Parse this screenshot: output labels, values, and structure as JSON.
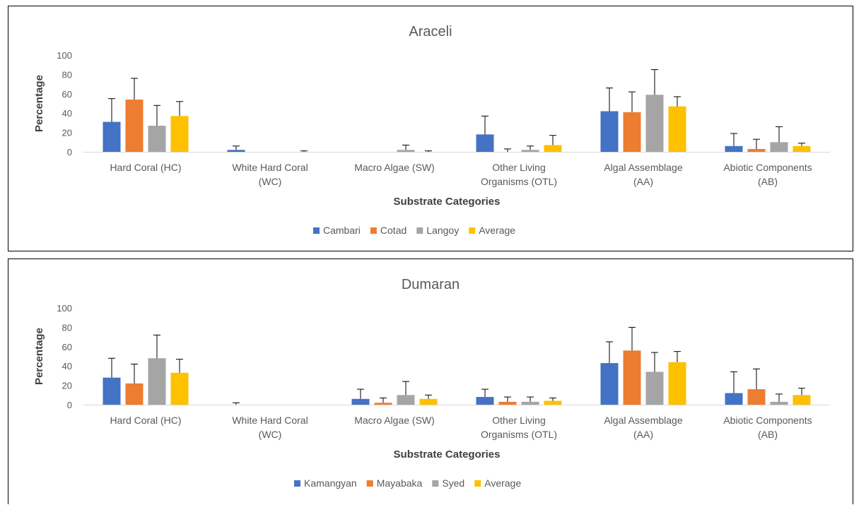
{
  "chart_data": [
    {
      "type": "bar",
      "title": "Araceli",
      "xlabel": "Substrate Categories",
      "ylabel": "Percentage",
      "ylim": [
        0,
        100
      ],
      "yticks": [
        0,
        20,
        40,
        60,
        80,
        100
      ],
      "categories": [
        [
          "Hard Coral (HC)"
        ],
        [
          "White Hard Coral",
          "(WC)"
        ],
        [
          "Macro Algae (SW)"
        ],
        [
          "Other Living",
          "Organisms (OTL)"
        ],
        [
          "Algal Assemblage",
          "(AA)"
        ],
        [
          "Abiotic Components",
          "(AB)"
        ]
      ],
      "series": [
        {
          "name": "Cambari",
          "color": "#4472C4",
          "values": [
            31,
            2,
            0,
            18,
            42,
            6
          ],
          "errors": [
            24,
            4,
            0,
            19,
            24,
            13
          ]
        },
        {
          "name": "Cotad",
          "color": "#ED7D31",
          "values": [
            54,
            0,
            0,
            0,
            41,
            3
          ],
          "errors": [
            22,
            0,
            0,
            3,
            21,
            10
          ]
        },
        {
          "name": "Langoy",
          "color": "#A5A5A5",
          "values": [
            27,
            0,
            2,
            2,
            59,
            10
          ],
          "errors": [
            21,
            0,
            5,
            4,
            26,
            16
          ]
        },
        {
          "name": "Average",
          "color": "#FFC000",
          "values": [
            37,
            0,
            0,
            7,
            47,
            6
          ],
          "errors": [
            15,
            1,
            1,
            10,
            10,
            3
          ]
        }
      ],
      "legend": "bottom"
    },
    {
      "type": "bar",
      "title": "Dumaran",
      "xlabel": "Substrate Categories",
      "ylabel": "Percentage",
      "ylim": [
        0,
        100
      ],
      "yticks": [
        0,
        20,
        40,
        60,
        80,
        100
      ],
      "categories": [
        [
          "Hard Coral (HC)"
        ],
        [
          "White Hard Coral",
          "(WC)"
        ],
        [
          "Macro Algae (SW)"
        ],
        [
          "Other Living",
          "Organisms (OTL)"
        ],
        [
          "Algal Assemblage",
          "(AA)"
        ],
        [
          "Abiotic Components",
          "(AB)"
        ]
      ],
      "series": [
        {
          "name": "Kamangyan",
          "color": "#4472C4",
          "values": [
            28,
            0,
            6,
            8,
            43,
            12
          ],
          "errors": [
            20,
            2,
            10,
            8,
            22,
            22
          ]
        },
        {
          "name": "Mayabaka",
          "color": "#ED7D31",
          "values": [
            22,
            0,
            2,
            3,
            56,
            16
          ],
          "errors": [
            20,
            0,
            5,
            5,
            24,
            21
          ]
        },
        {
          "name": "Syed",
          "color": "#A5A5A5",
          "values": [
            48,
            0,
            10,
            3,
            34,
            3
          ],
          "errors": [
            24,
            0,
            14,
            5,
            20,
            8
          ]
        },
        {
          "name": "Average",
          "color": "#FFC000",
          "values": [
            33,
            0,
            6,
            4,
            44,
            10
          ],
          "errors": [
            14,
            0,
            4,
            3,
            11,
            7
          ]
        }
      ],
      "legend": "bottom"
    }
  ]
}
